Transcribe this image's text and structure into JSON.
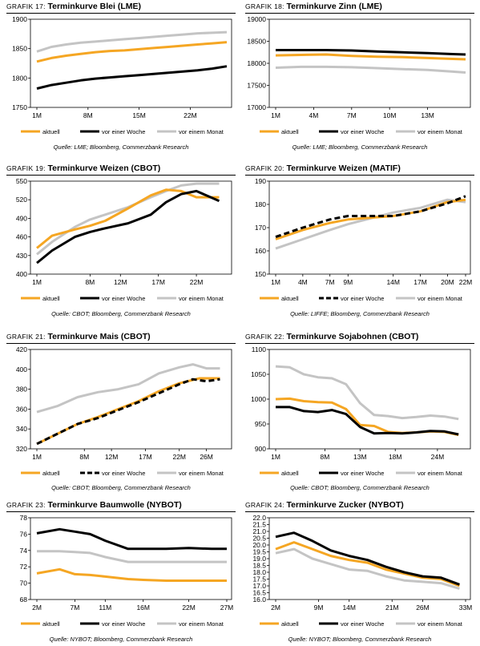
{
  "colors": {
    "aktuell": "#f5a623",
    "woche": "#000000",
    "monat": "#c4c4c4"
  },
  "chart_data": [
    {
      "type": "line",
      "prefix": "GRAFIK 17: ",
      "title": "Terminkurve Blei (LME)",
      "source": "Quelle: LME; Bloomberg, Commerzbank Research",
      "xticks": [
        {
          "x": 1,
          "label": "1M"
        },
        {
          "x": 8,
          "label": "8M"
        },
        {
          "x": 15,
          "label": "15M"
        },
        {
          "x": 22,
          "label": "22M"
        }
      ],
      "xlim": [
        1,
        27
      ],
      "yticks": [
        "1750",
        "1800",
        "1850",
        "1900"
      ],
      "ylim": [
        1750,
        1900
      ],
      "series": [
        {
          "name": "aktuell",
          "color": "aktuell",
          "dash": false,
          "x": [
            1,
            3,
            5,
            7,
            9,
            11,
            13,
            15,
            17,
            19,
            21,
            23,
            25,
            27
          ],
          "y": [
            1828,
            1834,
            1838,
            1841,
            1844,
            1846,
            1847,
            1849,
            1851,
            1853,
            1855,
            1857,
            1859,
            1861
          ]
        },
        {
          "name": "vor einer Woche",
          "color": "woche",
          "dash": false,
          "x": [
            1,
            3,
            5,
            7,
            9,
            11,
            13,
            15,
            17,
            19,
            21,
            23,
            25,
            27
          ],
          "y": [
            1782,
            1788,
            1792,
            1796,
            1799,
            1801,
            1803,
            1805,
            1807,
            1809,
            1811,
            1813,
            1816,
            1820
          ]
        },
        {
          "name": "vor einem Monat",
          "color": "monat",
          "dash": false,
          "x": [
            1,
            3,
            5,
            7,
            9,
            11,
            13,
            15,
            17,
            19,
            21,
            23,
            25,
            27
          ],
          "y": [
            1845,
            1853,
            1857,
            1860,
            1862,
            1864,
            1866,
            1868,
            1870,
            1872,
            1874,
            1876,
            1877,
            1878
          ]
        }
      ]
    },
    {
      "type": "line",
      "prefix": "GRAFIK 18: ",
      "title": "Terminkurve Zinn (LME)",
      "source": "Quelle: LME; Bloomberg, Commerzbank Research",
      "xticks": [
        {
          "x": 1,
          "label": "1M"
        },
        {
          "x": 4,
          "label": "4M"
        },
        {
          "x": 7,
          "label": "7M"
        },
        {
          "x": 10,
          "label": "10M"
        },
        {
          "x": 13,
          "label": "13M"
        }
      ],
      "xlim": [
        1,
        16
      ],
      "yticks": [
        "17000",
        "17500",
        "18000",
        "18500",
        "19000"
      ],
      "ylim": [
        17000,
        19000
      ],
      "series": [
        {
          "name": "aktuell",
          "color": "aktuell",
          "dash": false,
          "x": [
            1,
            3,
            5,
            7,
            9,
            11,
            13,
            15,
            16
          ],
          "y": [
            18180,
            18190,
            18200,
            18170,
            18150,
            18140,
            18120,
            18100,
            18090
          ]
        },
        {
          "name": "vor einer Woche",
          "color": "woche",
          "dash": false,
          "x": [
            1,
            3,
            5,
            7,
            9,
            11,
            13,
            15,
            16
          ],
          "y": [
            18300,
            18300,
            18300,
            18290,
            18270,
            18250,
            18230,
            18210,
            18200
          ]
        },
        {
          "name": "vor einem Monat",
          "color": "monat",
          "dash": false,
          "x": [
            1,
            3,
            5,
            7,
            9,
            11,
            13,
            15,
            16
          ],
          "y": [
            17900,
            17920,
            17920,
            17910,
            17890,
            17870,
            17850,
            17810,
            17790
          ]
        }
      ]
    },
    {
      "type": "line",
      "prefix": "GRAFIK 19: ",
      "title": "Terminkurve Weizen (CBOT)",
      "source": "Quelle: CBOT; Bloomberg, Commerzbank Research",
      "xticks": [
        {
          "x": 1,
          "label": "1M"
        },
        {
          "x": 8,
          "label": "8M"
        },
        {
          "x": 12,
          "label": "12M"
        },
        {
          "x": 17,
          "label": "17M"
        },
        {
          "x": 22,
          "label": "22M"
        }
      ],
      "xlim": [
        1,
        26
      ],
      "yticks": [
        "400",
        "430",
        "460",
        "490",
        "520",
        "550"
      ],
      "ylim": [
        400,
        550
      ],
      "series": [
        {
          "name": "aktuell",
          "color": "aktuell",
          "dash": false,
          "x": [
            1,
            3,
            6,
            8,
            10,
            13,
            16,
            18,
            20,
            22,
            25
          ],
          "y": [
            442,
            462,
            472,
            478,
            486,
            506,
            527,
            536,
            534,
            524,
            524
          ]
        },
        {
          "name": "vor einer Woche",
          "color": "woche",
          "dash": false,
          "x": [
            1,
            3,
            6,
            8,
            10,
            13,
            16,
            18,
            20,
            22,
            25
          ],
          "y": [
            418,
            438,
            460,
            468,
            474,
            482,
            496,
            516,
            529,
            534,
            518
          ]
        },
        {
          "name": "vor einem Monat",
          "color": "monat",
          "dash": false,
          "x": [
            1,
            3,
            6,
            8,
            10,
            13,
            16,
            18,
            20,
            22,
            25
          ],
          "y": [
            432,
            452,
            476,
            488,
            496,
            508,
            524,
            534,
            543,
            546,
            546
          ]
        }
      ]
    },
    {
      "type": "line",
      "prefix": "GRAFIK 20: ",
      "title": "Terminkurve Weizen (MATIF)",
      "source": "Quelle: LIFFE; Bloomberg, Commerzbank Research",
      "xticks": [
        {
          "x": 1,
          "label": "1M"
        },
        {
          "x": 4,
          "label": "4M"
        },
        {
          "x": 7,
          "label": "7M"
        },
        {
          "x": 9,
          "label": "9M"
        },
        {
          "x": 14,
          "label": "14M"
        },
        {
          "x": 17,
          "label": "17M"
        },
        {
          "x": 20,
          "label": "20M"
        },
        {
          "x": 22,
          "label": "22M"
        }
      ],
      "xlim": [
        1,
        22
      ],
      "yticks": [
        "150",
        "160",
        "170",
        "180",
        "190"
      ],
      "ylim": [
        150,
        190
      ],
      "series": [
        {
          "name": "aktuell",
          "color": "aktuell",
          "dash": false,
          "x": [
            1,
            4,
            7,
            9,
            14,
            17,
            20,
            22
          ],
          "y": [
            165,
            169,
            172,
            173.5,
            175,
            177,
            181,
            182
          ]
        },
        {
          "name": "vor einer Woche",
          "color": "woche",
          "dash": true,
          "x": [
            1,
            4,
            7,
            9,
            14,
            17,
            20,
            22
          ],
          "y": [
            166,
            170,
            173.5,
            175,
            175,
            177,
            180.5,
            183.5
          ]
        },
        {
          "name": "vor einem Monat",
          "color": "monat",
          "dash": false,
          "x": [
            1,
            4,
            7,
            9,
            14,
            17,
            20,
            22
          ],
          "y": [
            161,
            165,
            169,
            171.5,
            176.5,
            178.5,
            182,
            181
          ]
        }
      ]
    },
    {
      "type": "line",
      "prefix": "GRAFIK 21: ",
      "title": "Terminkurve Mais (CBOT)",
      "source": "Quelle: CBOT; Bloomberg, Commerzbank Research",
      "xticks": [
        {
          "x": 1,
          "label": "1M"
        },
        {
          "x": 8,
          "label": "8M"
        },
        {
          "x": 12,
          "label": "12M"
        },
        {
          "x": 17,
          "label": "17M"
        },
        {
          "x": 22,
          "label": "22M"
        },
        {
          "x": 26,
          "label": "26M"
        }
      ],
      "xlim": [
        1,
        29
      ],
      "yticks": [
        "320",
        "340",
        "360",
        "380",
        "400",
        "420"
      ],
      "ylim": [
        320,
        420
      ],
      "series": [
        {
          "name": "aktuell",
          "color": "aktuell",
          "dash": false,
          "x": [
            1,
            4,
            7,
            10,
            13,
            16,
            19,
            22,
            25,
            28
          ],
          "y": [
            325,
            335,
            345,
            352,
            360,
            368,
            378,
            386,
            391,
            391
          ]
        },
        {
          "name": "vor einer Woche",
          "color": "woche",
          "dash": true,
          "x": [
            1,
            4,
            7,
            10,
            13,
            16,
            19,
            22,
            24,
            26,
            28
          ],
          "y": [
            325,
            335,
            345,
            351,
            359,
            367,
            376,
            385,
            390,
            388,
            390
          ]
        },
        {
          "name": "vor einem Monat",
          "color": "monat",
          "dash": false,
          "x": [
            1,
            4,
            7,
            10,
            13,
            16,
            19,
            22,
            24,
            26,
            28
          ],
          "y": [
            357,
            363,
            372,
            377,
            380,
            385,
            396,
            402,
            405,
            401,
            401
          ]
        }
      ]
    },
    {
      "type": "line",
      "prefix": "GRAFIK 22: ",
      "title": "Terminkurve Sojabohnen (CBOT)",
      "source": "Quelle: CBOT; Bloomberg, Commerzbank Research",
      "xticks": [
        {
          "x": 1,
          "label": "1M"
        },
        {
          "x": 8,
          "label": "8M"
        },
        {
          "x": 13,
          "label": "13M"
        },
        {
          "x": 18,
          "label": "18M"
        },
        {
          "x": 24,
          "label": "24M"
        }
      ],
      "xlim": [
        1,
        28
      ],
      "yticks": [
        "900",
        "950",
        "1000",
        "1050",
        "1100"
      ],
      "ylim": [
        900,
        1100
      ],
      "series": [
        {
          "name": "aktuell",
          "color": "aktuell",
          "dash": false,
          "x": [
            1,
            3,
            5,
            7,
            9,
            11,
            13,
            15,
            17,
            19,
            21,
            23,
            25,
            27
          ],
          "y": [
            1000,
            1001,
            996,
            994,
            993,
            980,
            948,
            946,
            934,
            932,
            933,
            935,
            934,
            928
          ]
        },
        {
          "name": "vor einer Woche",
          "color": "woche",
          "dash": false,
          "x": [
            1,
            3,
            5,
            7,
            9,
            11,
            13,
            15,
            17,
            19,
            21,
            23,
            25,
            27
          ],
          "y": [
            984,
            984,
            976,
            974,
            978,
            970,
            944,
            931,
            932,
            931,
            933,
            936,
            935,
            929
          ]
        },
        {
          "name": "vor einem Monat",
          "color": "monat",
          "dash": false,
          "x": [
            1,
            3,
            5,
            7,
            9,
            11,
            13,
            15,
            17,
            19,
            21,
            23,
            25,
            27
          ],
          "y": [
            1066,
            1064,
            1050,
            1044,
            1042,
            1030,
            992,
            968,
            966,
            962,
            964,
            967,
            965,
            960
          ]
        }
      ]
    },
    {
      "type": "line",
      "prefix": "GRAFIK 23: ",
      "title": "Terminkurve Baumwolle (NYBOT)",
      "source": "Quelle: NYBOT; Bloomberg, Commerzbank Research",
      "xticks": [
        {
          "x": 2,
          "label": "2M"
        },
        {
          "x": 7,
          "label": "7M"
        },
        {
          "x": 11,
          "label": "11M"
        },
        {
          "x": 16,
          "label": "16M"
        },
        {
          "x": 22,
          "label": "22M"
        },
        {
          "x": 27,
          "label": "27M"
        }
      ],
      "xlim": [
        2,
        27
      ],
      "yticks": [
        "68",
        "70",
        "72",
        "74",
        "76",
        "78"
      ],
      "ylim": [
        68,
        78
      ],
      "series": [
        {
          "name": "aktuell",
          "color": "aktuell",
          "dash": false,
          "x": [
            2,
            5,
            7,
            9,
            11,
            14,
            16,
            19,
            22,
            25,
            27
          ],
          "y": [
            71.2,
            71.7,
            71.1,
            71,
            70.8,
            70.5,
            70.4,
            70.3,
            70.3,
            70.3,
            70.3
          ]
        },
        {
          "name": "vor einer Woche",
          "color": "woche",
          "dash": false,
          "x": [
            2,
            5,
            7,
            9,
            11,
            14,
            16,
            19,
            22,
            25,
            27
          ],
          "y": [
            76.1,
            76.6,
            76.3,
            76,
            75.2,
            74.2,
            74.2,
            74.2,
            74.3,
            74.2,
            74.2
          ]
        },
        {
          "name": "vor einem Monat",
          "color": "monat",
          "dash": false,
          "x": [
            2,
            5,
            7,
            9,
            11,
            14,
            16,
            19,
            22,
            25,
            27
          ],
          "y": [
            73.9,
            73.9,
            73.8,
            73.7,
            73.2,
            72.6,
            72.6,
            72.6,
            72.6,
            72.6,
            72.6
          ]
        }
      ]
    },
    {
      "type": "line",
      "prefix": "GRAFIK 24: ",
      "title": "Terminkurve Zucker (NYBOT)",
      "source": "Quelle: NYBOT; Bloomberg, Commerzbank Research",
      "xticks": [
        {
          "x": 2,
          "label": "2M"
        },
        {
          "x": 9,
          "label": "9M"
        },
        {
          "x": 14,
          "label": "14M"
        },
        {
          "x": 21,
          "label": "21M"
        },
        {
          "x": 26,
          "label": "26M"
        },
        {
          "x": 33,
          "label": "33M"
        }
      ],
      "xlim": [
        2,
        33
      ],
      "yticks": [
        "16.0",
        "16.5",
        "17.0",
        "17.5",
        "18.0",
        "18.5",
        "19.0",
        "19.5",
        "20.0",
        "20.5",
        "21.0",
        "21.5",
        "22.0"
      ],
      "ylim": [
        16,
        22
      ],
      "series": [
        {
          "name": "aktuell",
          "color": "aktuell",
          "dash": false,
          "x": [
            2,
            5,
            8,
            11,
            14,
            17,
            20,
            23,
            26,
            29,
            32
          ],
          "y": [
            19.7,
            20.2,
            19.7,
            19.2,
            18.9,
            18.7,
            18.2,
            17.9,
            17.6,
            17.5,
            17.0
          ]
        },
        {
          "name": "vor einer Woche",
          "color": "woche",
          "dash": false,
          "x": [
            2,
            5,
            8,
            11,
            14,
            17,
            20,
            23,
            26,
            29,
            32
          ],
          "y": [
            20.6,
            20.9,
            20.3,
            19.6,
            19.2,
            18.9,
            18.4,
            18.0,
            17.7,
            17.6,
            17.1
          ]
        },
        {
          "name": "vor einem Monat",
          "color": "monat",
          "dash": false,
          "x": [
            2,
            5,
            8,
            11,
            14,
            17,
            20,
            23,
            26,
            29,
            32
          ],
          "y": [
            19.4,
            19.7,
            19.0,
            18.6,
            18.2,
            18.1,
            17.7,
            17.4,
            17.3,
            17.2,
            16.8
          ]
        }
      ]
    }
  ]
}
